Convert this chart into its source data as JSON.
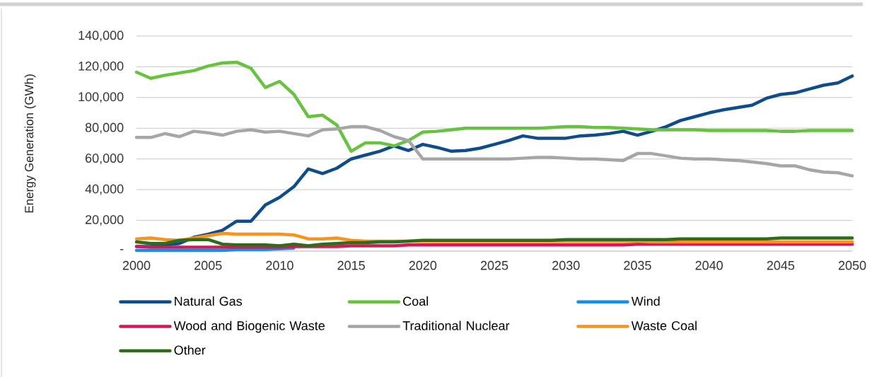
{
  "chart_data": {
    "type": "line",
    "ylabel": "Energy Generation (GWh)",
    "x": [
      2000,
      2001,
      2002,
      2003,
      2004,
      2005,
      2006,
      2007,
      2008,
      2009,
      2010,
      2011,
      2012,
      2013,
      2014,
      2015,
      2016,
      2017,
      2018,
      2019,
      2020,
      2021,
      2022,
      2023,
      2024,
      2025,
      2026,
      2027,
      2028,
      2029,
      2030,
      2031,
      2032,
      2033,
      2034,
      2035,
      2036,
      2037,
      2038,
      2039,
      2040,
      2041,
      2042,
      2043,
      2044,
      2045,
      2046,
      2047,
      2048,
      2049,
      2050
    ],
    "xlim": [
      2000,
      2050
    ],
    "xticks": [
      2000,
      2005,
      2010,
      2015,
      2020,
      2025,
      2030,
      2035,
      2040,
      2045,
      2050
    ],
    "ylim": [
      0,
      140000
    ],
    "yticks": [
      {
        "value": 0,
        "label": "-"
      },
      {
        "value": 20000,
        "label": "20,000"
      },
      {
        "value": 40000,
        "label": "40,000"
      },
      {
        "value": 60000,
        "label": "60,000"
      },
      {
        "value": 80000,
        "label": "80,000"
      },
      {
        "value": 100000,
        "label": "100,000"
      },
      {
        "value": 120000,
        "label": "120,000"
      },
      {
        "value": 140000,
        "label": "140,000"
      }
    ],
    "grid": "y",
    "legend": "bottom",
    "marker": "none",
    "line_style": "solid",
    "series": [
      {
        "name": "Natural Gas",
        "color": "#0e4c8c",
        "values": [
          3000,
          3000,
          4000,
          5000,
          9000,
          11000,
          13500,
          19500,
          19500,
          30000,
          35000,
          42000,
          53500,
          50500,
          54000,
          60000,
          62500,
          65000,
          68500,
          65500,
          69500,
          67500,
          65000,
          65500,
          67000,
          69500,
          72000,
          75000,
          73500,
          73500,
          73500,
          75000,
          75500,
          76500,
          78000,
          75500,
          78000,
          81000,
          85000,
          87500,
          90000,
          92000,
          93500,
          95000,
          99500,
          102000,
          103000,
          105500,
          108000,
          109500,
          114000
        ]
      },
      {
        "name": "Coal",
        "color": "#66c23f",
        "values": [
          116500,
          112500,
          114500,
          116000,
          117500,
          120500,
          122500,
          123000,
          119000,
          106500,
          110500,
          102000,
          87500,
          88500,
          82000,
          65000,
          70500,
          70500,
          68500,
          72000,
          77500,
          78000,
          79000,
          80000,
          80000,
          80000,
          80000,
          80000,
          80000,
          80500,
          81000,
          81000,
          80500,
          80500,
          80000,
          79500,
          79000,
          79000,
          79000,
          79000,
          78500,
          78500,
          78500,
          78500,
          78500,
          78000,
          78000,
          78500,
          78500,
          78500,
          78500
        ]
      },
      {
        "name": "Wind",
        "color": "#1a8fe0",
        "values": [
          500,
          500,
          500,
          500,
          500,
          500,
          500,
          1000,
          1000,
          1000,
          1500,
          2000,
          null,
          null,
          null,
          null,
          null,
          null,
          null,
          null,
          null,
          null,
          null,
          null,
          null,
          null,
          null,
          null,
          null,
          null,
          null,
          null,
          null,
          null,
          null,
          null,
          null,
          null,
          null,
          null,
          null,
          null,
          null,
          null,
          null,
          null,
          null,
          null,
          null,
          null,
          null
        ]
      },
      {
        "name": "Wood and Biogenic Waste",
        "color": "#d6185a",
        "values": [
          3000,
          2500,
          2500,
          2500,
          2500,
          2500,
          2500,
          2500,
          2500,
          2500,
          2500,
          3000,
          3000,
          3000,
          3000,
          3500,
          3500,
          3500,
          3500,
          4000,
          4000,
          4000,
          4000,
          4000,
          4000,
          4000,
          4000,
          4000,
          4000,
          4000,
          4000,
          4000,
          4000,
          4000,
          4000,
          4500,
          4500,
          4500,
          4500,
          4500,
          4500,
          4500,
          4500,
          4500,
          4500,
          4500,
          4500,
          4500,
          4500,
          4500,
          4500
        ]
      },
      {
        "name": "Traditional Nuclear",
        "color": "#a6a6a6",
        "values": [
          74000,
          74000,
          76500,
          74500,
          78000,
          77000,
          75500,
          78000,
          79000,
          77500,
          78000,
          76500,
          75000,
          79000,
          79500,
          81000,
          81000,
          78500,
          74500,
          72000,
          60000,
          60000,
          60000,
          60000,
          60000,
          60000,
          60000,
          60500,
          61000,
          61000,
          60500,
          60000,
          60000,
          59500,
          59000,
          63500,
          63500,
          62000,
          60500,
          60000,
          60000,
          59500,
          59000,
          58000,
          57000,
          55500,
          55500,
          53000,
          51500,
          51000,
          49000
        ]
      },
      {
        "name": "Waste Coal",
        "color": "#f7941d",
        "values": [
          8000,
          8500,
          7500,
          7000,
          8500,
          10000,
          11500,
          11000,
          11000,
          11000,
          11000,
          10500,
          8000,
          8000,
          8500,
          7000,
          6500,
          6500,
          6500,
          6500,
          6500,
          6500,
          6500,
          6500,
          6500,
          6500,
          6500,
          6500,
          6500,
          6500,
          6500,
          6500,
          6500,
          6500,
          6500,
          6500,
          6000,
          6000,
          6000,
          6000,
          6000,
          6000,
          6000,
          6000,
          6000,
          6000,
          6000,
          6000,
          6000,
          6000,
          6000
        ]
      },
      {
        "name": "Other",
        "color": "#2e6b1a",
        "values": [
          6000,
          5000,
          5000,
          7000,
          7500,
          7500,
          4500,
          4000,
          4000,
          4000,
          3500,
          4500,
          3500,
          4500,
          5000,
          5500,
          5500,
          6000,
          6000,
          6500,
          7000,
          7000,
          7000,
          7000,
          7000,
          7000,
          7000,
          7000,
          7000,
          7000,
          7500,
          7500,
          7500,
          7500,
          7500,
          7500,
          7500,
          7500,
          8000,
          8000,
          8000,
          8000,
          8000,
          8000,
          8000,
          8500,
          8500,
          8500,
          8500,
          8500,
          8500
        ]
      }
    ]
  }
}
